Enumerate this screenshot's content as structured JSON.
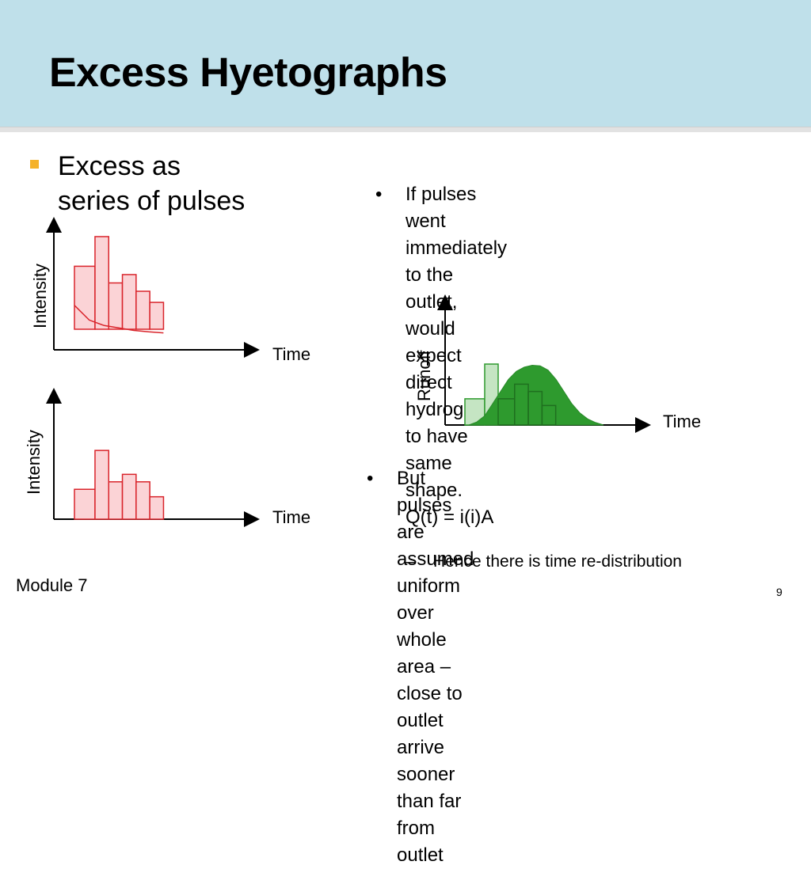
{
  "title": "Excess Hyetographs",
  "main_bullet": {
    "line1": "Excess as",
    "line2": "series of pulses"
  },
  "right_bullet_1": {
    "marker": "•",
    "lines": [
      "If pulses went immediately to the",
      "outlet, would expect direct",
      "hydrograph to have same shape.",
      "Q(t) = i(i)A"
    ]
  },
  "right_bullet_2": {
    "marker": "•",
    "lines": [
      "But pulses are assumed uniform",
      "over whole area – close to outlet",
      "arrive sooner than far from outlet"
    ]
  },
  "sub_bullet": {
    "marker": "–",
    "text": "Hence there is time re-distribution"
  },
  "footer": {
    "module": "Module 7",
    "page": "9"
  },
  "colors": {
    "header_bg": "#bfe0ea",
    "bullet_square": "#f5b22a",
    "pulse_red_fill": "#fbd3d6",
    "pulse_red_stroke": "#d9242b",
    "pulse_green_light": "#c5e5c3",
    "pulse_green_dark": "#2e9a2e",
    "hydrograph_green": "#2e9a2e"
  },
  "chart_data": [
    {
      "type": "bar",
      "title": "",
      "xlabel": "Time",
      "ylabel": "Intensity",
      "values": [
        0.68,
        1.0,
        0.5,
        0.59,
        0.41,
        0.29
      ],
      "loss_curve": [
        0.68,
        0.38,
        0.27,
        0.22,
        0.17,
        0.14,
        0.12
      ],
      "ylim": [
        0,
        1.35
      ]
    },
    {
      "type": "bar",
      "title": "",
      "xlabel": "Time",
      "ylabel": "Intensity",
      "values": [
        0.4,
        0.92,
        0.5,
        0.6,
        0.5,
        0.3
      ],
      "ylim": [
        0,
        1.9
      ]
    },
    {
      "type": "area",
      "title": "",
      "xlabel": "Time",
      "ylabel": "Runoff",
      "pulses": [
        0.43,
        1.0,
        0.43,
        0.67,
        0.55,
        0.32
      ],
      "hydrograph": [
        0,
        0.05,
        0.15,
        0.35,
        0.55,
        0.75,
        0.88,
        0.95,
        0.98,
        0.97,
        0.9,
        0.75,
        0.55,
        0.35,
        0.2,
        0.1,
        0.04,
        0
      ],
      "ylim": [
        0,
        1.7
      ]
    }
  ]
}
